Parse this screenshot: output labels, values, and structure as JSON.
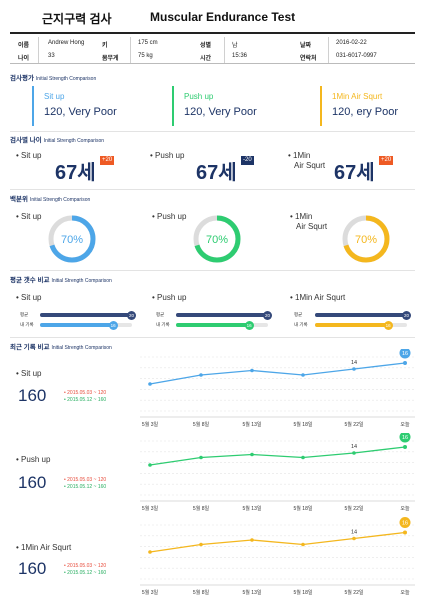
{
  "header": {
    "title_ko": "근지구력 검사",
    "title_en": "Muscular Endurance Test"
  },
  "info": {
    "name_label": "이름",
    "name_value": "Andrew Hong",
    "age_label": "나이",
    "age_value": "33",
    "height_label": "키",
    "height_value": "175 cm",
    "weight_label": "몸무게",
    "weight_value": "75 kg",
    "sex_label": "성별",
    "sex_value": "남",
    "time_label": "시간",
    "time_value": "15:36",
    "date_label": "날짜",
    "date_value": "2016-02-22",
    "phone_label": "연락처",
    "phone_value": "031-6017-0997"
  },
  "colors": {
    "blue": "#4da6e8",
    "green": "#2ecc71",
    "yellow": "#f4b71e",
    "navy": "#1d3466",
    "badge": "#ee5a24"
  },
  "evaluation": {
    "title": "검사평가",
    "subtitle": "Initial Strength Comparison",
    "items": [
      {
        "name": "Sit up",
        "value": "120, Very Poor"
      },
      {
        "name": "Push up",
        "value": "120, Very Poor"
      },
      {
        "name": "1Min Air Squrt",
        "value": "120, ery Poor"
      }
    ]
  },
  "age": {
    "title": "검사별 나이",
    "subtitle": "Initial Strength Comparison",
    "items": [
      {
        "name": "Sit up",
        "value": "67세",
        "badge": "+20"
      },
      {
        "name": "Push up",
        "value": "67세",
        "badge": "-20"
      },
      {
        "name": "1Min\nAir Squrt",
        "value": "67세",
        "badge": "+20"
      }
    ]
  },
  "percentile": {
    "title": "백분위",
    "subtitle": "Initial Strength Comparison",
    "items": [
      {
        "name": "Sit up",
        "value": "70%",
        "fraction": 0.7
      },
      {
        "name": "Push up",
        "value": "70%",
        "fraction": 0.7
      },
      {
        "name": "1Min\nAir Squrt",
        "value": "70%",
        "fraction": 0.7
      }
    ]
  },
  "average_compare": {
    "title": "평균 갯수 비교",
    "subtitle": "Initial Strength Comparison",
    "avg_label": "평균",
    "mine_label": "내 기록",
    "items": [
      {
        "name": "Sit up",
        "avg": 20,
        "mine": 16
      },
      {
        "name": "Push up",
        "avg": 20,
        "mine": 16
      },
      {
        "name": "1Min Air Squrt",
        "avg": 20,
        "mine": 16
      }
    ]
  },
  "records": {
    "title": "최근 기록 비교",
    "subtitle": "Initial Strength Comparison",
    "items": [
      {
        "name": "Sit up",
        "value": "160",
        "note_red": "• 2015.05.03 ~ 120",
        "note_green": "• 2015.05.12 ~ 160"
      },
      {
        "name": "Push up",
        "value": "160",
        "note_red": "• 2015.05.03 ~ 120",
        "note_green": "• 2015.05.12 ~ 160"
      },
      {
        "name": "1Min Air Squrt",
        "value": "160",
        "note_red": "• 2015.05.03 ~ 120",
        "note_green": "• 2015.05.12 ~ 160"
      }
    ]
  },
  "chart_data": [
    {
      "type": "line",
      "x": [
        "5월 3일",
        "5월 8일",
        "5월 13일",
        "5월 18일",
        "5월 22일",
        "오늘"
      ],
      "series": [
        {
          "values": [
            9,
            12,
            13.5,
            12,
            14,
            16
          ]
        }
      ],
      "ylim": [
        0,
        18
      ],
      "grid": true,
      "annotations": [
        {
          "x": "5월 22일",
          "label": "14"
        },
        {
          "x": "오늘",
          "label": "16"
        }
      ]
    },
    {
      "type": "line",
      "x": [
        "5월 3일",
        "5월 8일",
        "5월 13일",
        "5월 18일",
        "5월 22일",
        "오늘"
      ],
      "series": [
        {
          "values": [
            10,
            12.5,
            13.5,
            12.5,
            14,
            16
          ]
        }
      ],
      "ylim": [
        0,
        18
      ],
      "grid": true,
      "annotations": [
        {
          "x": "5월 22일",
          "label": "14"
        },
        {
          "x": "오늘",
          "label": "16"
        }
      ]
    },
    {
      "type": "line",
      "x": [
        "5월 3일",
        "5월 8일",
        "5월 13일",
        "5월 18일",
        "5월 22일",
        "오늘"
      ],
      "series": [
        {
          "values": [
            9,
            11.5,
            13,
            11.5,
            13.5,
            15.5
          ]
        }
      ],
      "ylim": [
        0,
        18
      ],
      "grid": true,
      "annotations": [
        {
          "x": "5월 22일",
          "label": "14"
        },
        {
          "x": "오늘",
          "label": "16"
        }
      ]
    }
  ]
}
